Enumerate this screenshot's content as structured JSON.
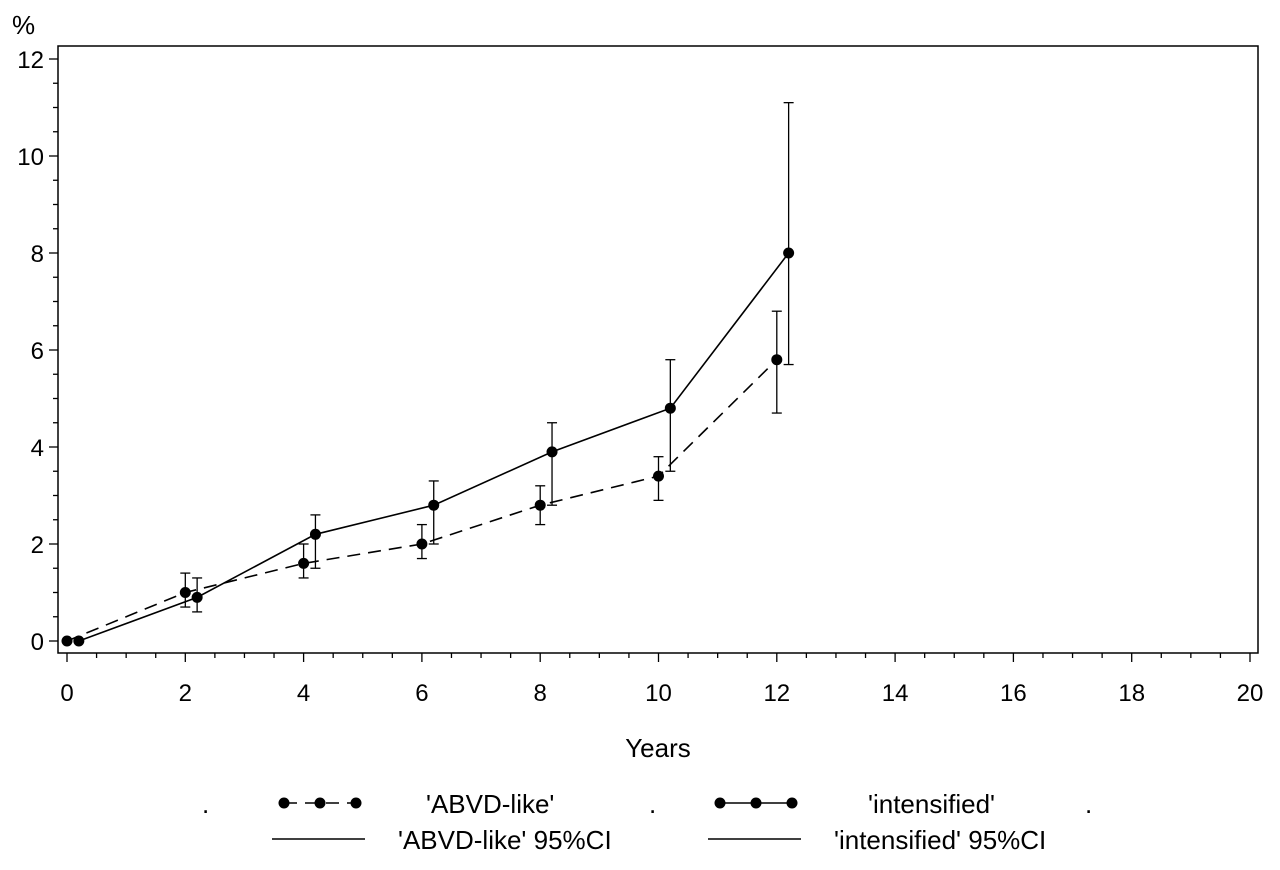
{
  "chart_data": {
    "type": "line",
    "title": "",
    "ylabel": "%",
    "xlabel": "Years",
    "xlim": [
      0,
      20
    ],
    "ylim": [
      0,
      12
    ],
    "x_ticks": [
      0,
      2,
      4,
      6,
      8,
      10,
      12,
      14,
      16,
      18,
      20
    ],
    "y_ticks": [
      0,
      2,
      4,
      6,
      8,
      10,
      12
    ],
    "x_tick_labels": [
      "0",
      "2",
      "4",
      "6",
      "8",
      "10",
      "12",
      "14",
      "16",
      "18",
      "20"
    ],
    "y_tick_labels": [
      "0",
      "2",
      "4",
      "6",
      "8",
      "10",
      "12"
    ],
    "grid": false,
    "series": [
      {
        "name": "'ABVD-like'",
        "line_style": "dashed",
        "x": [
          0,
          2,
          4,
          6,
          8,
          10,
          12
        ],
        "values": [
          0,
          1.0,
          1.6,
          2.0,
          2.8,
          3.4,
          5.8
        ],
        "ci_lower": [
          0,
          0.7,
          1.3,
          1.7,
          2.4,
          2.9,
          4.7
        ],
        "ci_upper": [
          0,
          1.4,
          2.0,
          2.4,
          3.2,
          3.8,
          6.8
        ]
      },
      {
        "name": "'intensified'",
        "line_style": "solid",
        "x": [
          0.2,
          2.2,
          4.2,
          6.2,
          8.2,
          10.2,
          12.2
        ],
        "values": [
          0,
          0.9,
          2.2,
          2.8,
          3.9,
          4.8,
          8.0
        ],
        "ci_lower": [
          0,
          0.6,
          1.5,
          2.0,
          2.8,
          3.5,
          5.7
        ],
        "ci_upper": [
          0,
          1.3,
          2.6,
          3.3,
          4.5,
          5.8,
          11.1
        ]
      }
    ],
    "legend": {
      "placement": "bottom",
      "entries": [
        {
          "text": "'ABVD-like'",
          "symbol": "dashed-line-dots"
        },
        {
          "text": "'intensified'",
          "symbol": "solid-line-dots"
        },
        {
          "text": "'ABVD-like'  95%CI",
          "symbol": "solid-line"
        },
        {
          "text": "'intensified'  95%CI",
          "symbol": "solid-line"
        }
      ],
      "separators": [
        ".",
        ".",
        "."
      ]
    }
  }
}
